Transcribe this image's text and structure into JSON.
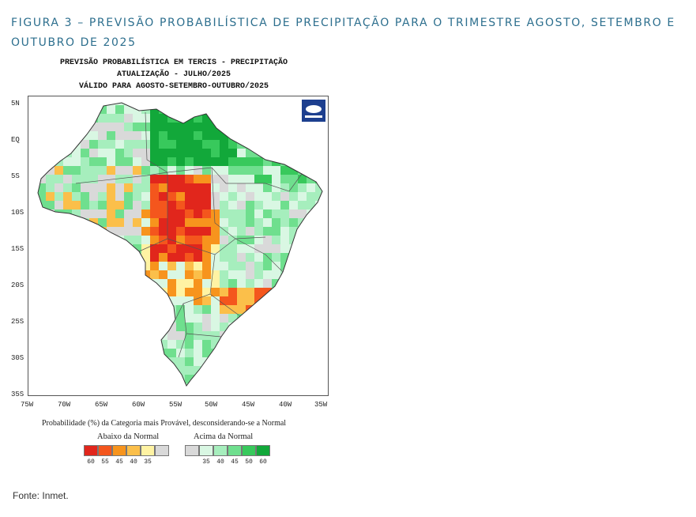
{
  "caption": "FIGURA 3 – PREVISÃO PROBABILÍSTICA DE PRECIPITAÇÃO PARA O TRIMESTRE AGOSTO, SETEMBRO E OUTUBRO DE 2025",
  "map_title": {
    "line1": "PREVISÃO PROBABILÍSTICA EM TERCIS - PRECIPITAÇÃO",
    "line2": "ATUALIZAÇÃO - JULHO/2025",
    "line3": "VÁLIDO PARA AGOSTO-SETEMBRO-OUTUBRO/2025"
  },
  "lat_labels": [
    "5N",
    "EQ",
    "5S",
    "10S",
    "15S",
    "20S",
    "25S",
    "30S",
    "35S"
  ],
  "lon_labels": [
    "75W",
    "70W",
    "65W",
    "60W",
    "55W",
    "50W",
    "45W",
    "40W",
    "35W"
  ],
  "probability_note": "Probabilidade (%) da Categoria mais Provável, desconsiderando-se a Normal",
  "legend": {
    "below_title": "Abaixo da Normal",
    "above_title": "Acima da Normal",
    "below": [
      {
        "label": "60",
        "color": "#e1261c"
      },
      {
        "label": "55",
        "color": "#f4561d"
      },
      {
        "label": "45",
        "color": "#f7941d"
      },
      {
        "label": "40",
        "color": "#fbbf4a"
      },
      {
        "label": "35",
        "color": "#fff3a3"
      }
    ],
    "neutral_color": "#d9d9d9",
    "above": [
      {
        "label": "35",
        "color": "#d9f7e3"
      },
      {
        "label": "40",
        "color": "#a6eebd"
      },
      {
        "label": "45",
        "color": "#6fdf8e"
      },
      {
        "label": "50",
        "color": "#38c95c"
      },
      {
        "label": "60",
        "color": "#12a83a"
      }
    ]
  },
  "logo_icon": "inmet-logo-icon",
  "source": "Fonte: Inmet."
}
